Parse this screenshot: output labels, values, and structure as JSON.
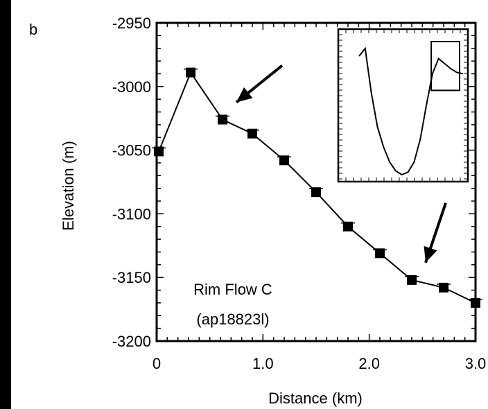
{
  "panel_label": "b",
  "annotation": {
    "line1": "Rim Flow C",
    "line2": "(ap18823l)"
  },
  "chart_data": {
    "type": "line",
    "xlabel": "Distance (km)",
    "ylabel": "Elevation (m)",
    "xlim": [
      0,
      3.0
    ],
    "ylim": [
      -3200,
      -2950
    ],
    "x_tick_labels": [
      "0",
      "1.0",
      "2.0",
      "3.0"
    ],
    "y_tick_labels": [
      "-2950",
      "-3000",
      "-3050",
      "-3100",
      "-3150",
      "-3200"
    ],
    "x_ticks": [
      0,
      1.0,
      2.0,
      3.0
    ],
    "y_ticks": [
      -2950,
      -3000,
      -3050,
      -3100,
      -3150,
      -3200
    ],
    "series": [
      {
        "marker": "square",
        "color": "#000000",
        "x": [
          0.02,
          0.32,
          0.62,
          0.9,
          1.2,
          1.5,
          1.8,
          2.1,
          2.4,
          2.7,
          3.0
        ],
        "y": [
          -3051,
          -2989,
          -3026,
          -3037,
          -3058,
          -3083,
          -3110,
          -3131,
          -3152,
          -3158,
          -3170
        ]
      }
    ],
    "arrows": [
      {
        "points_to": {
          "x": 0.62,
          "y": -3026
        }
      },
      {
        "points_to": {
          "x": 2.4,
          "y": -3152
        }
      }
    ],
    "inset": {
      "type": "line",
      "description_of_profile": "full crater cross-section with boxed rim segment",
      "profile": [
        0.06,
        0.0,
        0.35,
        0.62,
        0.78,
        0.9,
        0.97,
        1.0,
        0.98,
        0.9,
        0.72,
        0.45,
        0.2,
        0.08,
        0.12,
        0.16,
        0.19,
        0.2
      ],
      "highlight_box_x_range": [
        0.76,
        1.0
      ],
      "highlight_box_y_range": [
        0.0,
        0.32
      ]
    }
  }
}
